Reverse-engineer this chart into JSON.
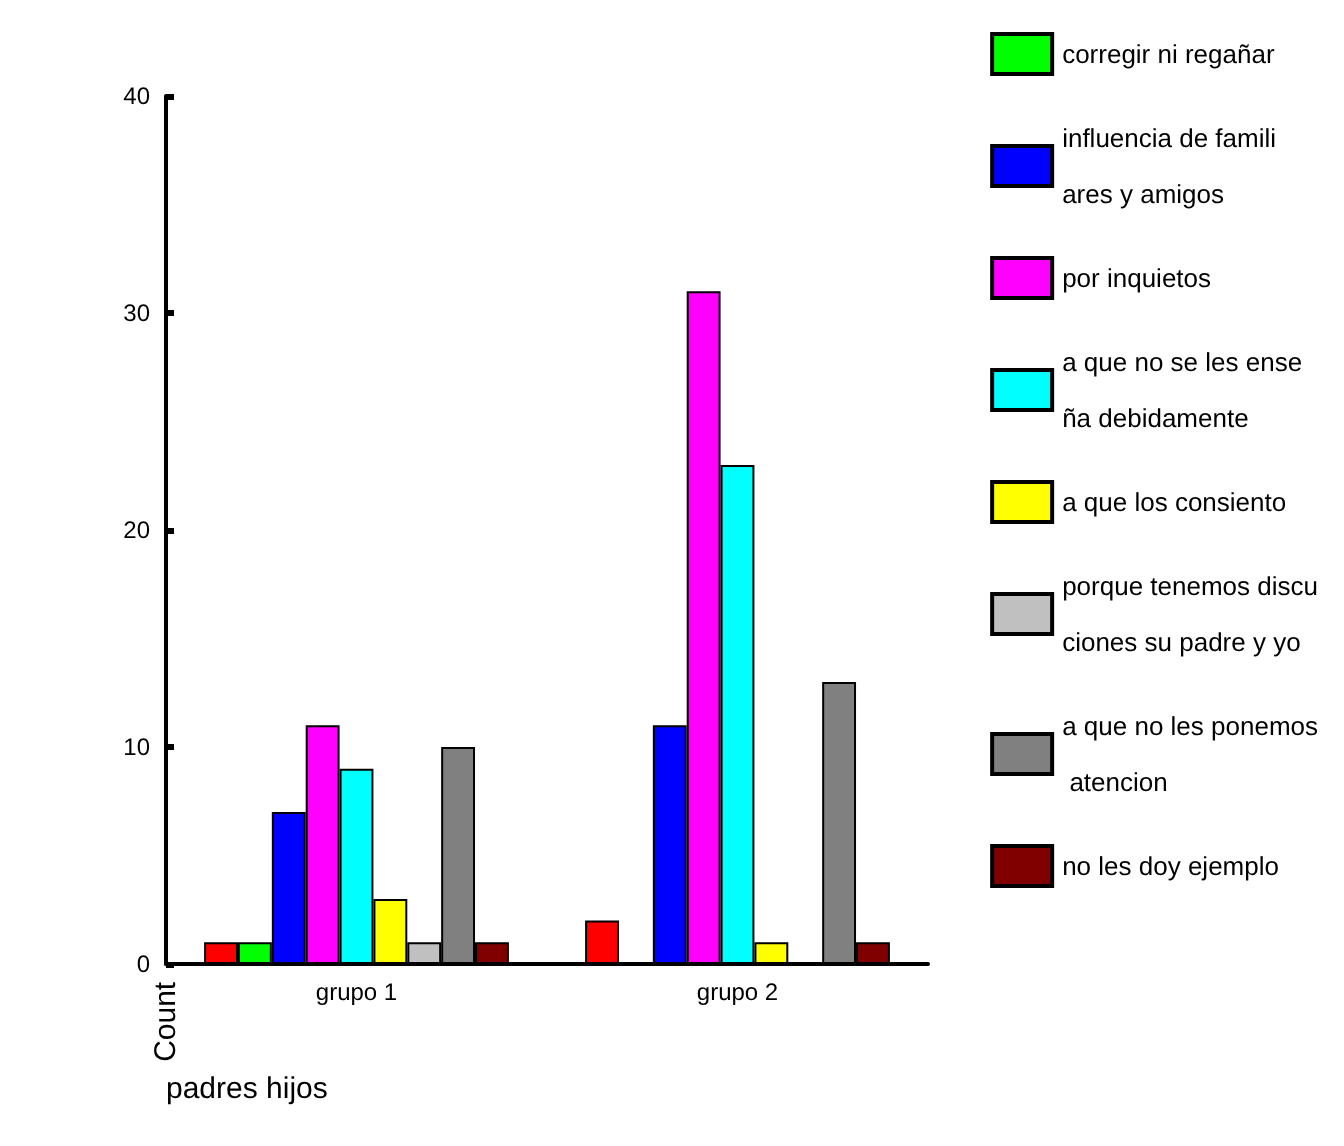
{
  "chart_data": {
    "type": "bar",
    "xlabel": "padres hijos",
    "ylabel": "Count",
    "categories": [
      "grupo 1",
      "grupo 2"
    ],
    "series": [
      {
        "color": "#ff0000",
        "values": [
          1,
          2
        ]
      },
      {
        "name": "corregir ni regañar",
        "color": "#00ff00",
        "values": [
          1,
          null
        ]
      },
      {
        "name": "influencia de famili\nares y amigos",
        "color": "#0000ff",
        "values": [
          7,
          11
        ]
      },
      {
        "name": "por inquietos",
        "color": "#ff00ff",
        "values": [
          11,
          31
        ]
      },
      {
        "name": "a que no se les ense\nña debidamente",
        "color": "#00ffff",
        "values": [
          9,
          23
        ]
      },
      {
        "name": "a que los consiento",
        "color": "#ffff00",
        "values": [
          3,
          1
        ]
      },
      {
        "name": "porque tenemos discu\nciones su padre y yo",
        "color": "#c0c0c0",
        "values": [
          1,
          null
        ]
      },
      {
        "name": "a que no les ponemos\n atencion",
        "color": "#808080",
        "values": [
          10,
          13
        ]
      },
      {
        "name": "no les doy ejemplo",
        "color": "#800000",
        "values": [
          1,
          1
        ]
      }
    ],
    "ylim": [
      0,
      40
    ],
    "yticks": [
      0,
      10,
      20,
      30,
      40
    ],
    "grid": false,
    "legend": "right"
  }
}
